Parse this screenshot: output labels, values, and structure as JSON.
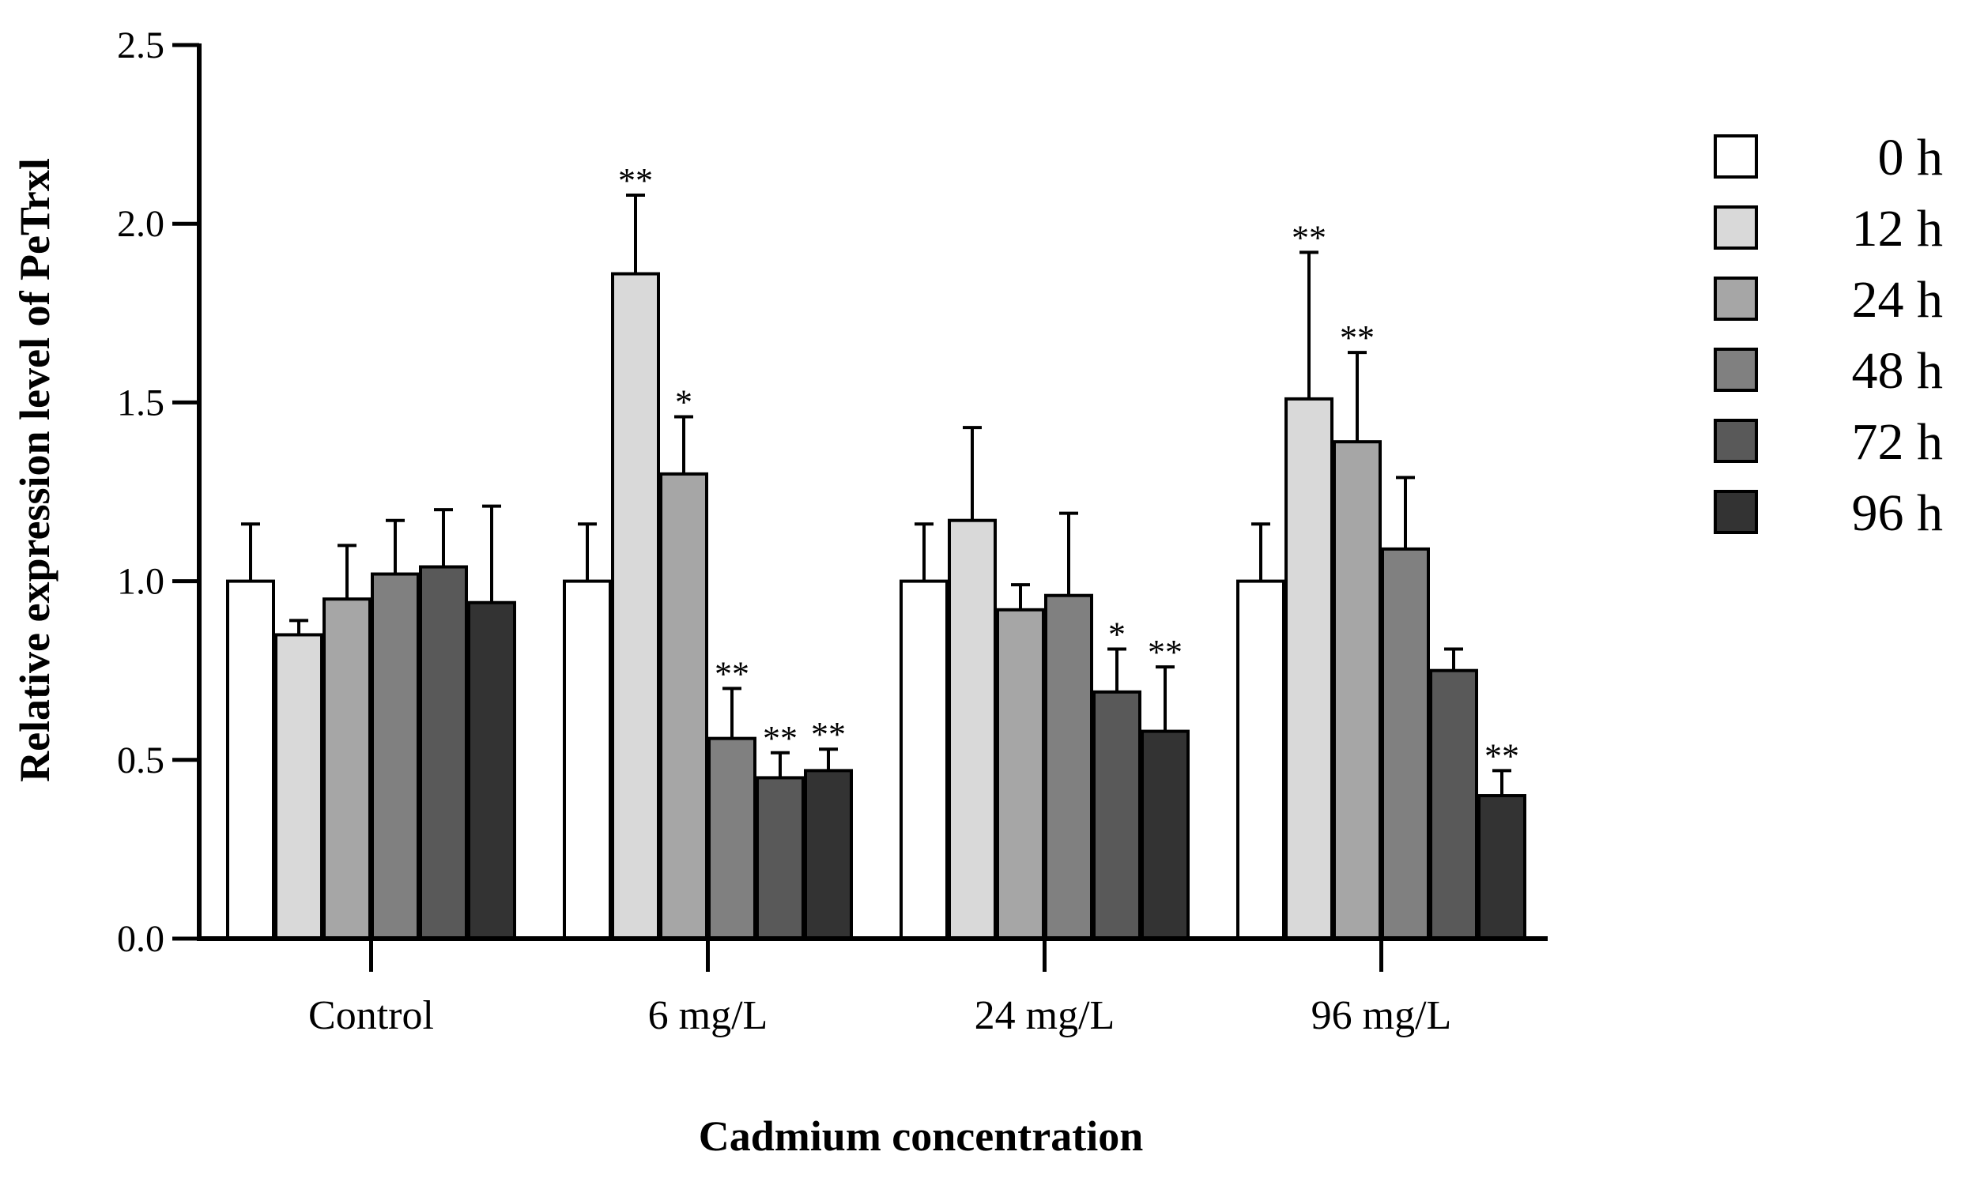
{
  "chart_data": {
    "type": "bar",
    "xlabel": "Cadmium concentration",
    "ylabel": "Relative expression level of PeTrxl",
    "ylim": [
      0,
      2.5
    ],
    "yticks": [
      "0.0",
      "0.5",
      "1.0",
      "1.5",
      "2.0",
      "2.5"
    ],
    "grid": false,
    "legend_position": "right",
    "categories": [
      "Control",
      "6 mg/L",
      "24 mg/L",
      "96 mg/L"
    ],
    "series": [
      {
        "name": "0 h",
        "color": "#ffffff",
        "values": [
          1.0,
          1.0,
          1.0,
          1.0
        ],
        "errors": [
          0.16,
          0.16,
          0.16,
          0.16
        ],
        "sig": [
          "",
          "",
          "",
          ""
        ]
      },
      {
        "name": "12 h",
        "color": "#d9d9d9",
        "values": [
          0.85,
          1.86,
          1.17,
          1.51
        ],
        "errors": [
          0.04,
          0.22,
          0.26,
          0.41
        ],
        "sig": [
          "",
          "**",
          "",
          "**"
        ]
      },
      {
        "name": "24 h",
        "color": "#a6a6a6",
        "values": [
          0.95,
          1.3,
          0.92,
          1.39
        ],
        "errors": [
          0.15,
          0.16,
          0.07,
          0.25
        ],
        "sig": [
          "",
          "*",
          "",
          "**"
        ]
      },
      {
        "name": "48 h",
        "color": "#808080",
        "values": [
          1.02,
          0.56,
          0.96,
          1.09
        ],
        "errors": [
          0.15,
          0.14,
          0.23,
          0.2
        ],
        "sig": [
          "",
          "**",
          "",
          ""
        ]
      },
      {
        "name": "72 h",
        "color": "#595959",
        "values": [
          1.04,
          0.45,
          0.69,
          0.75
        ],
        "errors": [
          0.16,
          0.07,
          0.12,
          0.06
        ],
        "sig": [
          "",
          "**",
          "*",
          ""
        ]
      },
      {
        "name": "96 h",
        "color": "#333333",
        "values": [
          0.94,
          0.47,
          0.58,
          0.4
        ],
        "errors": [
          0.27,
          0.06,
          0.18,
          0.07
        ],
        "sig": [
          "",
          "**",
          "**",
          "**"
        ]
      }
    ]
  }
}
